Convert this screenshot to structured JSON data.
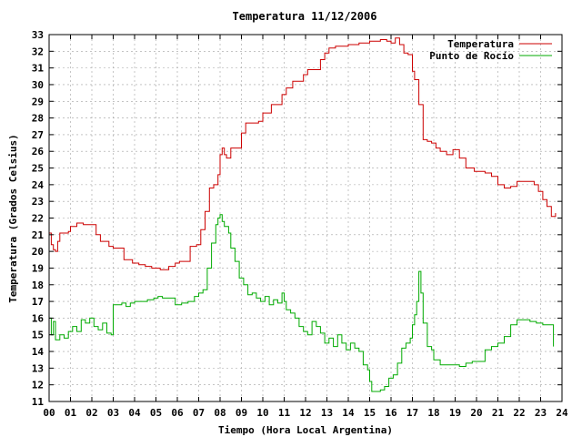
{
  "chart_data": {
    "type": "line",
    "title": "Temperatura 11/12/2006",
    "xlabel": "Tiempo (Hora Local Argentina)",
    "ylabel": "Temperatura (Grados Celsius)",
    "xlim": [
      0,
      24
    ],
    "ylim": [
      11,
      33
    ],
    "x_ticks": [
      "00",
      "01",
      "02",
      "03",
      "04",
      "05",
      "06",
      "07",
      "08",
      "09",
      "10",
      "11",
      "12",
      "13",
      "14",
      "15",
      "16",
      "17",
      "18",
      "19",
      "20",
      "21",
      "22",
      "23",
      "24"
    ],
    "y_ticks": [
      "11",
      "12",
      "13",
      "14",
      "15",
      "16",
      "17",
      "18",
      "19",
      "20",
      "21",
      "22",
      "23",
      "24",
      "25",
      "26",
      "27",
      "28",
      "29",
      "30",
      "31",
      "32",
      "33"
    ],
    "grid": true,
    "legend_position": "top-right",
    "series": [
      {
        "name": "Temperatura",
        "color": "#cc0000",
        "x": [
          0.0,
          0.1,
          0.2,
          0.3,
          0.4,
          0.5,
          0.9,
          1.0,
          1.3,
          1.6,
          2.1,
          2.2,
          2.4,
          2.8,
          3.0,
          3.2,
          3.5,
          3.9,
          4.2,
          4.5,
          4.8,
          5.0,
          5.2,
          5.4,
          5.6,
          5.9,
          6.1,
          6.3,
          6.6,
          6.9,
          7.1,
          7.3,
          7.5,
          7.7,
          7.9,
          8.0,
          8.1,
          8.2,
          8.3,
          8.5,
          8.7,
          9.0,
          9.2,
          9.5,
          9.8,
          10.0,
          10.4,
          10.7,
          10.9,
          11.1,
          11.4,
          11.7,
          11.9,
          12.1,
          12.4,
          12.7,
          12.9,
          13.1,
          13.4,
          13.7,
          14.0,
          14.5,
          15.0,
          15.5,
          15.8,
          16.0,
          16.2,
          16.4,
          16.6,
          16.8,
          17.0,
          17.1,
          17.3,
          17.5,
          17.7,
          17.9,
          18.1,
          18.3,
          18.6,
          18.9,
          19.2,
          19.5,
          19.9,
          20.1,
          20.4,
          20.7,
          21.0,
          21.3,
          21.6,
          21.9,
          22.3,
          22.5,
          22.7,
          22.9,
          23.1,
          23.3,
          23.5,
          23.7
        ],
        "values": [
          21.1,
          20.4,
          20.1,
          20.0,
          20.6,
          21.1,
          21.2,
          21.5,
          21.7,
          21.6,
          21.6,
          21.0,
          20.6,
          20.3,
          20.2,
          20.2,
          19.5,
          19.3,
          19.2,
          19.1,
          19.0,
          19.0,
          18.9,
          18.9,
          19.1,
          19.3,
          19.4,
          19.4,
          20.3,
          20.4,
          21.3,
          22.4,
          23.8,
          24.0,
          24.6,
          25.8,
          26.2,
          25.8,
          25.6,
          26.2,
          26.2,
          27.1,
          27.7,
          27.7,
          27.8,
          28.3,
          28.8,
          28.8,
          29.4,
          29.8,
          30.2,
          30.2,
          30.6,
          30.9,
          30.9,
          31.5,
          31.9,
          32.2,
          32.3,
          32.3,
          32.4,
          32.5,
          32.6,
          32.7,
          32.6,
          32.5,
          32.8,
          32.4,
          31.9,
          31.8,
          30.8,
          30.3,
          28.8,
          26.7,
          26.6,
          26.5,
          26.2,
          26.0,
          25.8,
          26.1,
          25.6,
          25.0,
          24.8,
          24.8,
          24.7,
          24.5,
          24.0,
          23.8,
          23.9,
          24.2,
          24.2,
          24.2,
          24.0,
          23.6,
          23.1,
          22.7,
          22.1,
          22.3
        ]
      },
      {
        "name": "Punto de Rocío",
        "color": "#00aa00",
        "x": [
          0.0,
          0.1,
          0.2,
          0.3,
          0.5,
          0.7,
          0.9,
          1.1,
          1.3,
          1.5,
          1.7,
          1.9,
          2.1,
          2.3,
          2.5,
          2.7,
          2.9,
          3.0,
          3.2,
          3.4,
          3.6,
          3.8,
          4.0,
          4.3,
          4.6,
          4.9,
          5.1,
          5.3,
          5.6,
          5.9,
          6.2,
          6.5,
          6.8,
          7.0,
          7.2,
          7.4,
          7.6,
          7.8,
          7.9,
          8.0,
          8.1,
          8.2,
          8.4,
          8.5,
          8.7,
          8.9,
          9.1,
          9.3,
          9.5,
          9.7,
          9.9,
          10.1,
          10.3,
          10.5,
          10.7,
          10.9,
          11.0,
          11.1,
          11.3,
          11.5,
          11.7,
          11.9,
          12.1,
          12.3,
          12.5,
          12.7,
          12.9,
          13.1,
          13.3,
          13.5,
          13.7,
          13.9,
          14.1,
          14.3,
          14.5,
          14.7,
          14.9,
          15.0,
          15.1,
          15.3,
          15.5,
          15.7,
          15.9,
          16.1,
          16.3,
          16.5,
          16.7,
          16.9,
          17.0,
          17.1,
          17.2,
          17.3,
          17.4,
          17.5,
          17.7,
          17.9,
          18.0,
          18.3,
          18.6,
          18.9,
          19.2,
          19.5,
          19.8,
          20.1,
          20.4,
          20.7,
          21.0,
          21.3,
          21.6,
          21.9,
          22.2,
          22.5,
          22.8,
          23.1,
          23.4,
          23.6
        ],
        "values": [
          16.0,
          15.0,
          15.8,
          14.7,
          15.0,
          14.8,
          15.2,
          15.5,
          15.2,
          15.9,
          15.7,
          16.0,
          15.5,
          15.3,
          15.7,
          15.1,
          15.0,
          16.8,
          16.8,
          16.9,
          16.7,
          16.9,
          17.0,
          17.0,
          17.1,
          17.2,
          17.3,
          17.2,
          17.2,
          16.8,
          16.9,
          17.0,
          17.3,
          17.5,
          17.7,
          19.0,
          20.5,
          21.6,
          22.0,
          22.2,
          21.8,
          21.5,
          21.1,
          20.2,
          19.4,
          18.4,
          18.0,
          17.4,
          17.5,
          17.2,
          17.0,
          17.3,
          16.8,
          17.1,
          16.9,
          17.5,
          17.0,
          16.5,
          16.3,
          16.0,
          15.5,
          15.2,
          15.0,
          15.8,
          15.5,
          15.1,
          14.5,
          14.8,
          14.3,
          15.0,
          14.5,
          14.1,
          14.5,
          14.2,
          14.0,
          13.2,
          12.9,
          12.2,
          11.6,
          11.6,
          11.7,
          11.9,
          12.4,
          12.6,
          13.3,
          14.2,
          14.5,
          14.8,
          15.6,
          16.2,
          17.0,
          18.8,
          17.5,
          15.7,
          14.3,
          14.1,
          13.5,
          13.2,
          13.2,
          13.2,
          13.1,
          13.3,
          13.4,
          13.4,
          14.1,
          14.3,
          14.5,
          14.9,
          15.6,
          15.9,
          15.9,
          15.8,
          15.7,
          15.6,
          15.6,
          14.3
        ]
      }
    ]
  }
}
